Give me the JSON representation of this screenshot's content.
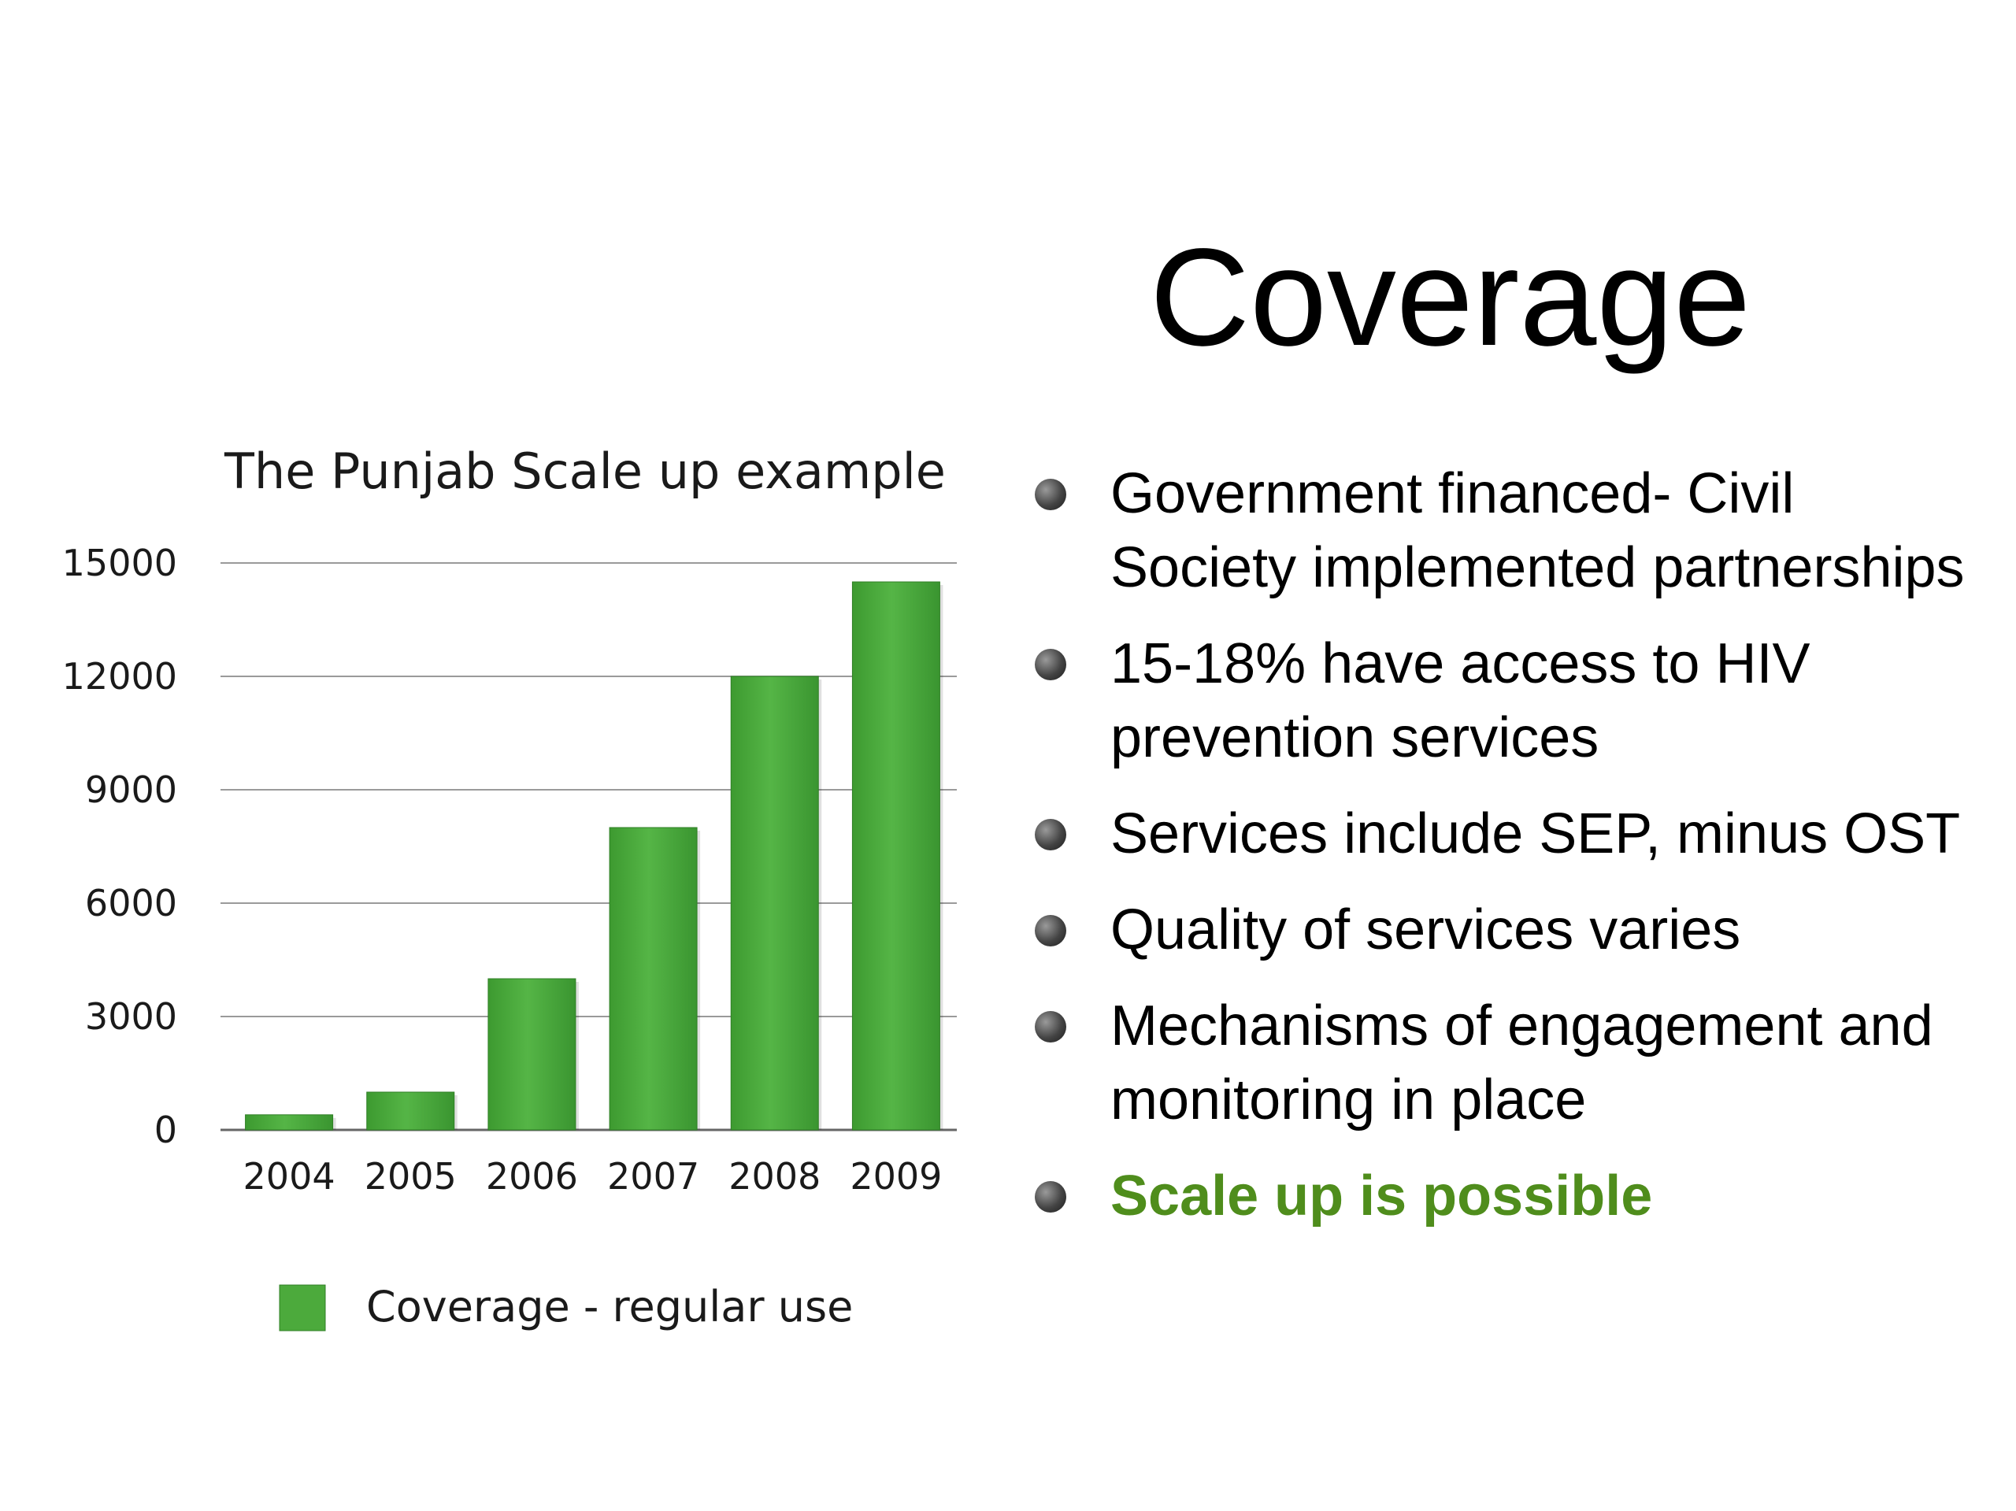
{
  "slide": {
    "title": "Coverage",
    "bullets": [
      {
        "text": "Government financed- Civil Society implemented partnerships",
        "highlight": false
      },
      {
        "text": "15-18% have access to HIV prevention services",
        "highlight": false
      },
      {
        "text": "Services include SEP, minus OST",
        "highlight": false
      },
      {
        "text": "Quality of services varies",
        "highlight": false
      },
      {
        "text": "Mechanisms of engagement and monitoring in place",
        "highlight": false
      },
      {
        "text": "Scale up is possible",
        "highlight": true
      }
    ],
    "highlight_color": "#4f8d1c"
  },
  "chart_data": {
    "type": "bar",
    "title": "The Punjab Scale up example",
    "categories": [
      "2004",
      "2005",
      "2006",
      "2007",
      "2008",
      "2009"
    ],
    "series": [
      {
        "name": "Coverage - regular use",
        "values": [
          400,
          1000,
          4000,
          8000,
          12000,
          14500
        ],
        "color": "#4caa3c"
      }
    ],
    "ylim": [
      0,
      15000
    ],
    "yticks": [
      "0",
      "3000",
      "6000",
      "9000",
      "12000",
      "15000"
    ],
    "xlabel": "",
    "ylabel": "",
    "grid": true,
    "legend": "bottom"
  }
}
